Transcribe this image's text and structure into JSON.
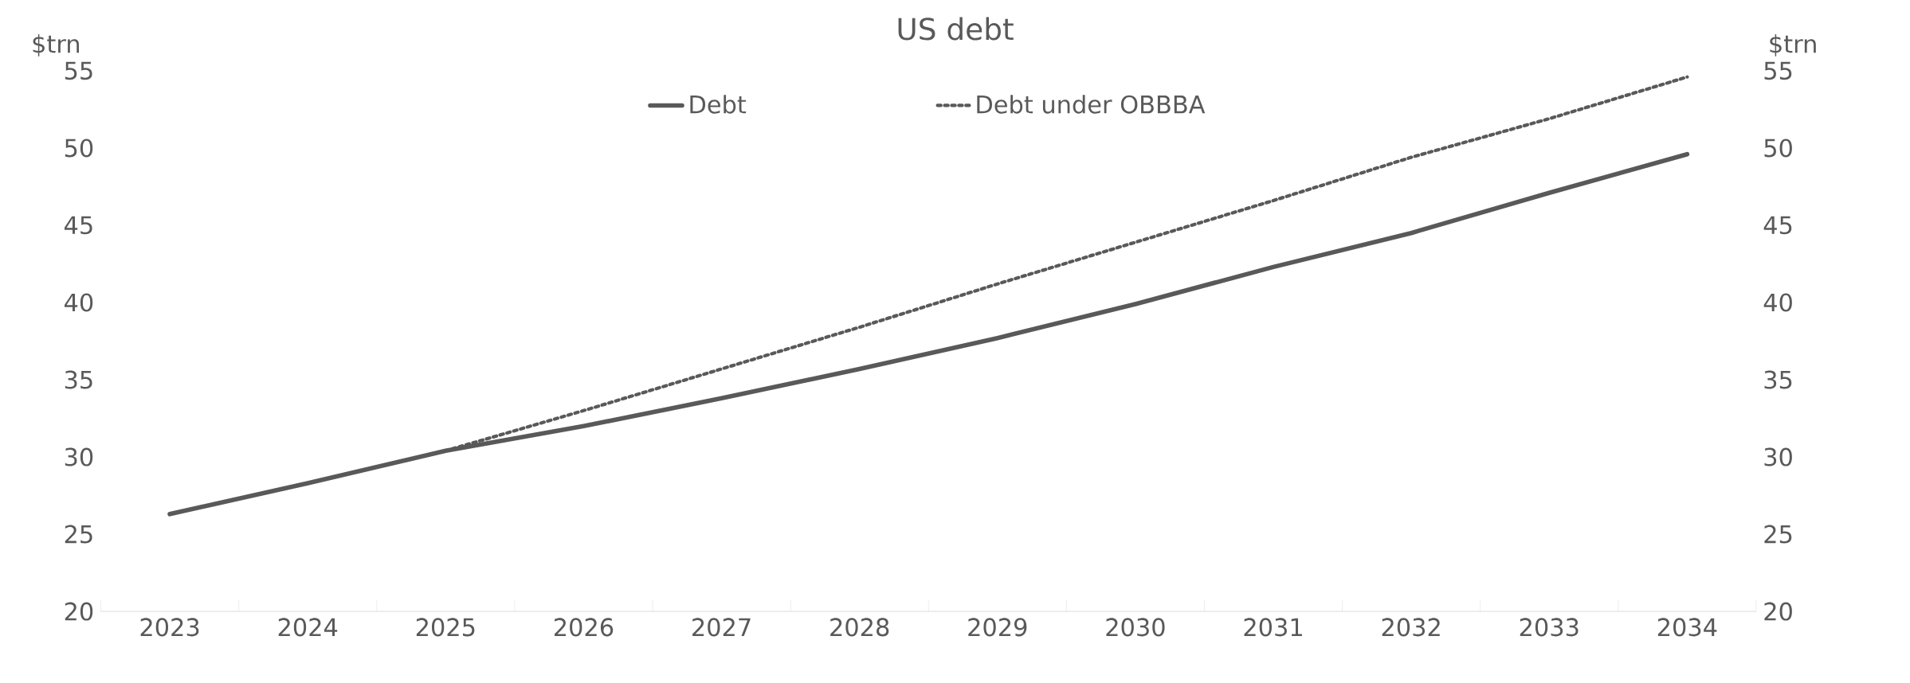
{
  "chart_data": {
    "type": "line",
    "title": "US debt",
    "ylabel": "$trn",
    "y2label": "$trn",
    "categories": [
      "2023",
      "2024",
      "2025",
      "2026",
      "2027",
      "2028",
      "2029",
      "2030",
      "2031",
      "2032",
      "2033",
      "2034"
    ],
    "series": [
      {
        "name": "Debt",
        "color": "#595959",
        "line_style": "solid",
        "values": [
          26.3,
          28.3,
          30.4,
          32.0,
          33.8,
          35.7,
          37.7,
          39.9,
          42.3,
          44.5,
          47.1,
          49.6
        ]
      },
      {
        "name": "Debt under OBBBA",
        "color": "#595959",
        "line_style": "dotted",
        "values": [
          null,
          null,
          30.4,
          33.0,
          35.7,
          38.4,
          41.2,
          43.9,
          46.6,
          49.4,
          51.9,
          54.6
        ]
      }
    ],
    "ylim": [
      20,
      55
    ],
    "yticks": [
      20,
      25,
      30,
      35,
      40,
      45,
      50,
      55
    ],
    "y2lim": [
      20,
      55
    ],
    "y2ticks": [
      20,
      25,
      30,
      35,
      40,
      45,
      50,
      55
    ],
    "grid": false,
    "legend": "top",
    "marker": "none"
  }
}
